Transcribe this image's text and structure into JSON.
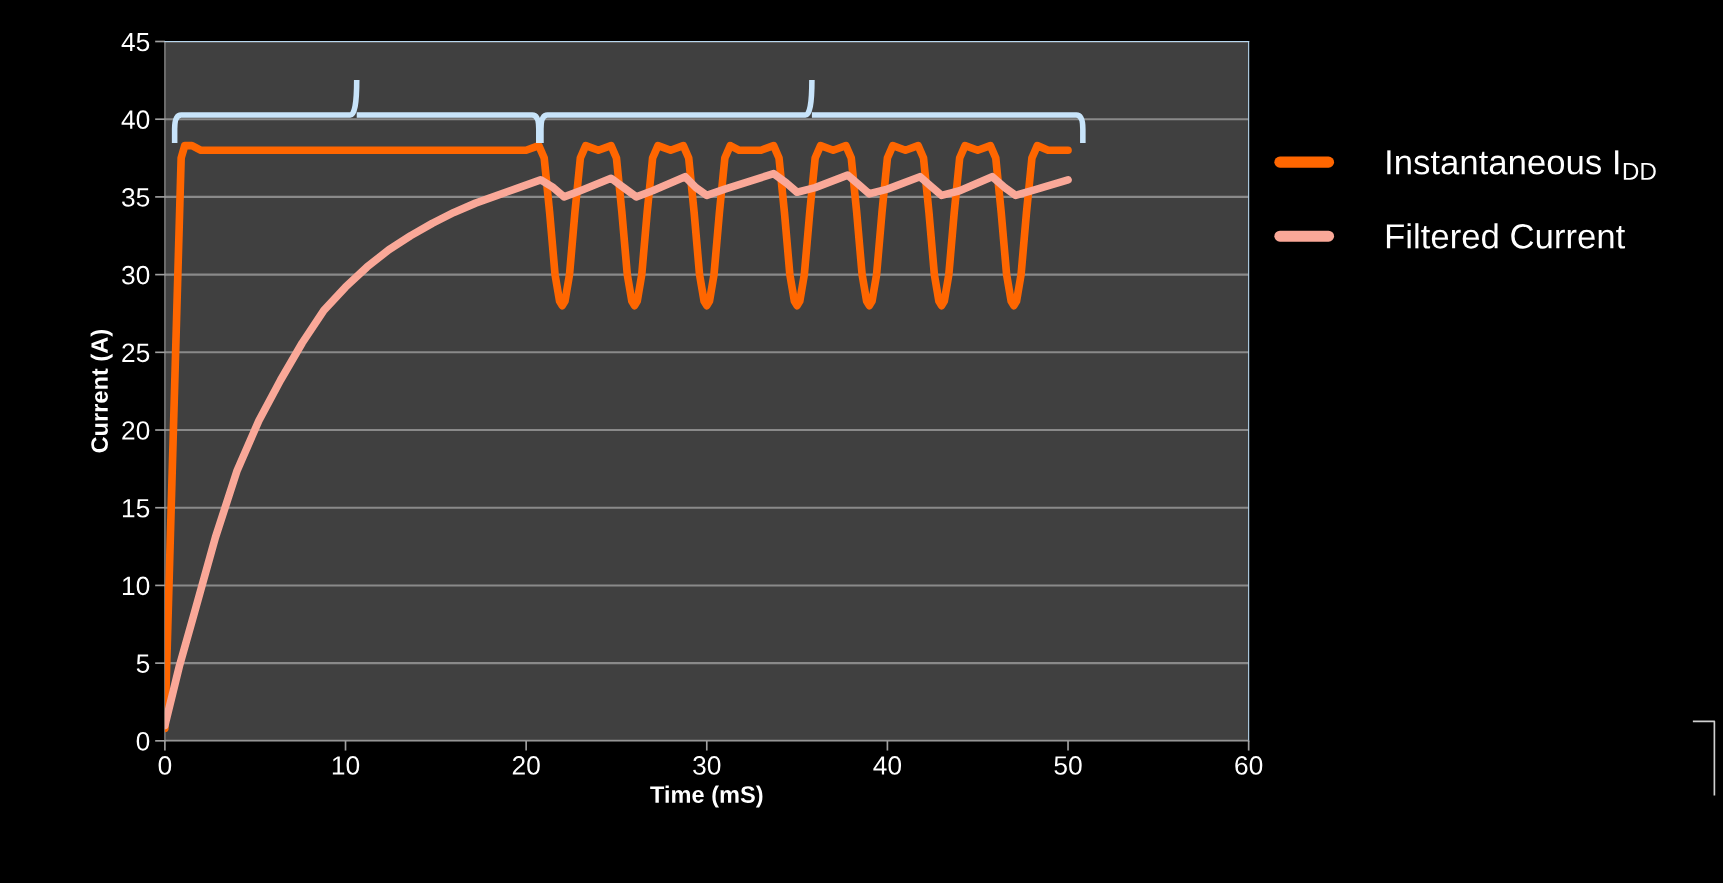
{
  "chart_data": {
    "type": "line",
    "xlabel": "Time (mS)",
    "ylabel": "Current (A)",
    "xlim": [
      0,
      60
    ],
    "xticks": [
      0,
      10,
      20,
      30,
      40,
      50,
      60
    ],
    "ylim": [
      0,
      45
    ],
    "yticks": [
      0,
      5,
      10,
      15,
      20,
      25,
      30,
      35,
      40,
      45
    ],
    "grid": "y",
    "legend": "right",
    "line_style": "solid",
    "marker": "none",
    "series": [
      {
        "name": "Instantaneous I$_{DD}$",
        "color": "#ff6600",
        "x": [
          0,
          0.9,
          1.1,
          1.5,
          2,
          20,
          20.7,
          21,
          21.3,
          21.6,
          21.85,
          22,
          22.15,
          22.4,
          22.7,
          23,
          23.3,
          24,
          24.7,
          25,
          25.3,
          25.6,
          25.85,
          26,
          26.15,
          26.4,
          26.7,
          27,
          27.3,
          28,
          28.7,
          29,
          29.3,
          29.6,
          29.85,
          30,
          30.15,
          30.4,
          30.7,
          31,
          31.3,
          31.8,
          33,
          33.7,
          34,
          34.3,
          34.6,
          34.85,
          35,
          35.15,
          35.4,
          35.7,
          36,
          36.3,
          37,
          37.7,
          38,
          38.3,
          38.6,
          38.85,
          39,
          39.15,
          39.4,
          39.7,
          40,
          40.3,
          41,
          41.7,
          42,
          42.3,
          42.6,
          42.85,
          43,
          43.15,
          43.4,
          43.7,
          44,
          44.3,
          45,
          45.7,
          46,
          46.3,
          46.6,
          46.85,
          47,
          47.15,
          47.4,
          47.7,
          48,
          48.3,
          48.9,
          50
        ],
        "values": [
          0.8,
          37.5,
          38.3,
          38.3,
          38,
          38,
          38.3,
          37.5,
          34,
          30,
          28.3,
          28,
          28.3,
          30,
          34,
          37.5,
          38.3,
          38,
          38.3,
          37.5,
          34,
          30,
          28.3,
          28,
          28.3,
          30,
          34,
          37.5,
          38.3,
          38,
          38.3,
          37.5,
          34,
          30,
          28.3,
          28,
          28.3,
          30,
          34,
          37.5,
          38.3,
          38,
          38,
          38.3,
          37.5,
          34,
          30,
          28.3,
          28,
          28.3,
          30,
          34,
          37.5,
          38.3,
          38,
          38.3,
          37.5,
          34,
          30,
          28.3,
          28,
          28.3,
          30,
          34,
          37.5,
          38.3,
          38,
          38.3,
          37.5,
          34,
          30,
          28.3,
          28,
          28.3,
          30,
          34,
          37.5,
          38.3,
          38,
          38.3,
          37.5,
          34,
          30,
          28.3,
          28,
          28.3,
          30,
          34,
          37.5,
          38.3,
          38,
          38
        ]
      },
      {
        "name": "Filtered Current",
        "color": "#faa898",
        "x": [
          0,
          0.8,
          1.6,
          2.8,
          4,
          5.2,
          6.4,
          7.6,
          8.8,
          10,
          11.2,
          12.4,
          13.6,
          14.8,
          16,
          17.2,
          18.4,
          19.6,
          20.8,
          21.5,
          22.1,
          23,
          24.7,
          25.4,
          26.1,
          27,
          28.8,
          29.4,
          30,
          31,
          33.7,
          34.4,
          35,
          36,
          37.8,
          38.4,
          39,
          40,
          41.8,
          42.4,
          43,
          44,
          45.8,
          46.5,
          47.1,
          48,
          50
        ],
        "values": [
          1,
          4.8,
          8.1,
          13.1,
          17.4,
          20.6,
          23.2,
          25.6,
          27.7,
          29.2,
          30.5,
          31.6,
          32.5,
          33.3,
          34,
          34.6,
          35.1,
          35.6,
          36.1,
          35.6,
          35,
          35.4,
          36.2,
          35.6,
          35,
          35.4,
          36.3,
          35.6,
          35.1,
          35.5,
          36.5,
          35.9,
          35.3,
          35.6,
          36.4,
          35.8,
          35.2,
          35.5,
          36.3,
          35.7,
          35.1,
          35.4,
          36.3,
          35.6,
          35.1,
          35.4,
          36.1
        ]
      }
    ]
  }
}
